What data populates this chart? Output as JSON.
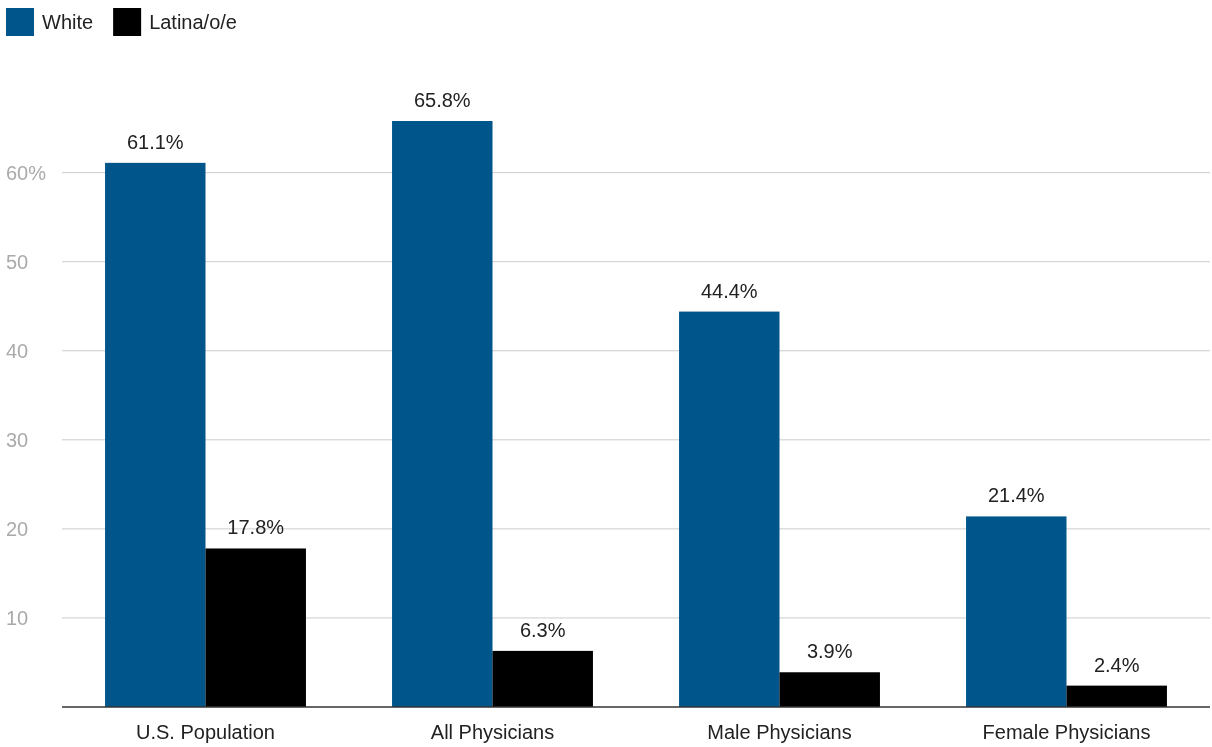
{
  "chart_data": {
    "type": "bar",
    "categories": [
      "U.S. Population",
      "All Physicians",
      "Male Physicians",
      "Female Physicians"
    ],
    "series": [
      {
        "name": "White",
        "color": "#00558a",
        "values": [
          61.1,
          65.8,
          44.4,
          21.4
        ],
        "value_labels": [
          "61.1%",
          "65.8%",
          "44.4%",
          "21.4%"
        ]
      },
      {
        "name": "Latina/o/e",
        "color": "#000000",
        "values": [
          17.8,
          6.3,
          3.9,
          2.4
        ],
        "value_labels": [
          "17.8%",
          "6.3%",
          "3.9%",
          "2.4%"
        ]
      }
    ],
    "ylim": [
      0,
      65.8
    ],
    "yticks": [
      10,
      20,
      30,
      40,
      50,
      {
        "value": 60,
        "label": "60%"
      }
    ],
    "grid": "y",
    "legend": "top left"
  }
}
